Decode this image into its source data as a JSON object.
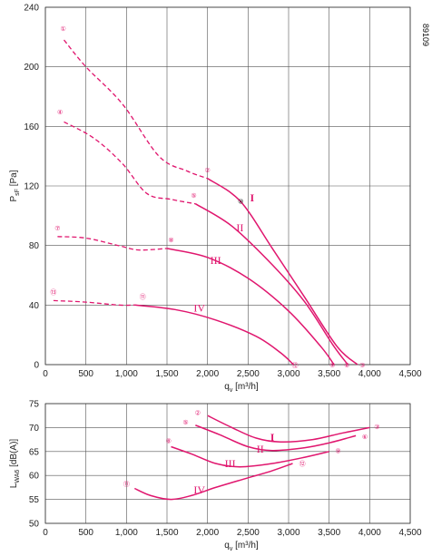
{
  "doc_number": "89109",
  "colors": {
    "curve": "#e0166e",
    "grid": "#555555",
    "text": "#222222"
  },
  "chart_data": [
    {
      "type": "line",
      "xlabel": "q_v [m³/h]",
      "ylabel": "P_sF [Pa]",
      "xlim": [
        0,
        4500
      ],
      "ylim": [
        0,
        240
      ],
      "x_ticks": [
        "0",
        "500",
        "1,000",
        "1,500",
        "2,000",
        "2,500",
        "3,000",
        "3,500",
        "4,000",
        "4,500"
      ],
      "y_ticks": [
        "0",
        "40",
        "80",
        "120",
        "160",
        "200",
        "240"
      ],
      "grid": true,
      "series": [
        {
          "name": "I",
          "label_at": [
            2550,
            112
          ],
          "solid": [
            [
              2000,
              125
            ],
            [
              2400,
              110
            ],
            [
              2800,
              78
            ],
            [
              3200,
              45
            ],
            [
              3600,
              12
            ],
            [
              3850,
              0
            ]
          ],
          "dashed": [
            [
              230,
              218
            ],
            [
              500,
              200
            ],
            [
              950,
              175
            ],
            [
              1400,
              140
            ],
            [
              1750,
              130
            ],
            [
              2000,
              125
            ]
          ]
        },
        {
          "name": "II",
          "label_at": [
            2400,
            92
          ],
          "solid": [
            [
              1850,
              108
            ],
            [
              2300,
              93
            ],
            [
              2800,
              67
            ],
            [
              3200,
              42
            ],
            [
              3550,
              13
            ],
            [
              3730,
              0
            ]
          ],
          "dashed": [
            [
              230,
              163
            ],
            [
              600,
              152
            ],
            [
              950,
              135
            ],
            [
              1250,
              115
            ],
            [
              1550,
              111
            ],
            [
              1850,
              108
            ]
          ]
        },
        {
          "name": "III",
          "label_at": [
            2100,
            70
          ],
          "solid": [
            [
              1500,
              78
            ],
            [
              2000,
              72
            ],
            [
              2500,
              58
            ],
            [
              3000,
              36
            ],
            [
              3400,
              12
            ],
            [
              3560,
              0
            ]
          ],
          "dashed": [
            [
              150,
              86
            ],
            [
              500,
              85
            ],
            [
              900,
              80
            ],
            [
              1150,
              77
            ],
            [
              1500,
              78
            ]
          ]
        },
        {
          "name": "IV",
          "label_at": [
            1900,
            38
          ],
          "solid": [
            [
              1100,
              40
            ],
            [
              1600,
              37
            ],
            [
              2100,
              30
            ],
            [
              2600,
              19
            ],
            [
              2900,
              8
            ],
            [
              3060,
              0
            ]
          ],
          "dashed": [
            [
              100,
              43
            ],
            [
              500,
              42
            ],
            [
              900,
              40
            ],
            [
              1100,
              40
            ]
          ]
        }
      ],
      "markers": [
        {
          "num": "①",
          "x": 220,
          "y": 226
        },
        {
          "num": "②",
          "x": 2000,
          "y": 131
        },
        {
          "num": "③",
          "x": 3910,
          "y": 0
        },
        {
          "num": "④",
          "x": 180,
          "y": 170
        },
        {
          "num": "⑤",
          "x": 1830,
          "y": 114
        },
        {
          "num": "⑥",
          "x": 3720,
          "y": 0
        },
        {
          "num": "⑦",
          "x": 150,
          "y": 92
        },
        {
          "num": "⑧",
          "x": 1550,
          "y": 84
        },
        {
          "num": "⑨",
          "x": 3540,
          "y": 0
        },
        {
          "num": "⑩",
          "x": 2410,
          "y": 110,
          "dark": true
        },
        {
          "num": "⑪",
          "x": 1200,
          "y": 46
        },
        {
          "num": "⑫",
          "x": 3080,
          "y": 0
        },
        {
          "num": "⑬",
          "x": 100,
          "y": 49
        }
      ]
    },
    {
      "type": "line",
      "xlabel": "q_v [m³/h]",
      "ylabel": "L_WA6 [dB(A)]",
      "xlim": [
        0,
        4500
      ],
      "ylim": [
        50,
        75
      ],
      "x_ticks": [
        "0",
        "500",
        "1,000",
        "1,500",
        "2,000",
        "2,500",
        "3,000",
        "3,500",
        "4,000",
        "4,500"
      ],
      "y_ticks": [
        "50",
        "55",
        "60",
        "65",
        "70",
        "75"
      ],
      "grid": true,
      "series": [
        {
          "name": "I",
          "label_at": [
            2800,
            68
          ],
          "points": [
            [
              2000,
              72.5
            ],
            [
              2300,
              70
            ],
            [
              2600,
              67.8
            ],
            [
              2900,
              67
            ],
            [
              3300,
              67.5
            ],
            [
              3650,
              68.8
            ],
            [
              4000,
              70
            ]
          ]
        },
        {
          "name": "II",
          "label_at": [
            2650,
            65.5
          ],
          "points": [
            [
              1850,
              70.5
            ],
            [
              2150,
              68.5
            ],
            [
              2500,
              66
            ],
            [
              2800,
              65.2
            ],
            [
              3200,
              65.8
            ],
            [
              3500,
              66.8
            ],
            [
              3830,
              68.3
            ]
          ]
        },
        {
          "name": "III",
          "label_at": [
            2280,
            62.5
          ],
          "points": [
            [
              1550,
              66
            ],
            [
              1800,
              64.5
            ],
            [
              2100,
              62.5
            ],
            [
              2400,
              61.8
            ],
            [
              2800,
              62.5
            ],
            [
              3200,
              63.8
            ],
            [
              3500,
              65
            ]
          ]
        },
        {
          "name": "IV",
          "label_at": [
            1900,
            57
          ],
          "points": [
            [
              1100,
              57.3
            ],
            [
              1300,
              55.8
            ],
            [
              1550,
              55
            ],
            [
              1800,
              55.8
            ],
            [
              2100,
              57.5
            ],
            [
              2500,
              59.5
            ],
            [
              2800,
              61
            ],
            [
              3050,
              62.5
            ]
          ]
        }
      ],
      "markers": [
        {
          "num": "②",
          "x": 1880,
          "y": 73.2
        },
        {
          "num": "③",
          "x": 4090,
          "y": 70.3
        },
        {
          "num": "⑤",
          "x": 1730,
          "y": 71.2
        },
        {
          "num": "⑥",
          "x": 3940,
          "y": 68.2
        },
        {
          "num": "⑧",
          "x": 1520,
          "y": 67.3
        },
        {
          "num": "⑨",
          "x": 3610,
          "y": 65.2
        },
        {
          "num": "⑪",
          "x": 1000,
          "y": 58.3
        },
        {
          "num": "⑫",
          "x": 3170,
          "y": 62.6
        }
      ]
    }
  ]
}
